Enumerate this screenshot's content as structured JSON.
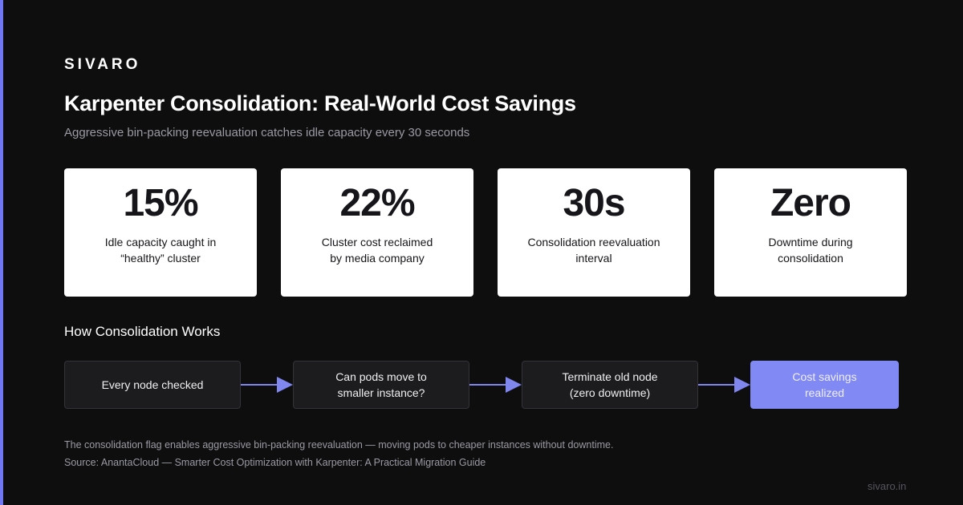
{
  "brand": "SIVARO",
  "title": "Karpenter Consolidation: Real-World Cost Savings",
  "subtitle": "Aggressive bin-packing reevaluation catches idle capacity every 30 seconds",
  "stats": [
    {
      "value": "15%",
      "label_lines": [
        "Idle capacity caught in",
        "“healthy” cluster"
      ]
    },
    {
      "value": "22%",
      "label_lines": [
        "Cluster cost reclaimed",
        "by media company"
      ]
    },
    {
      "value": "30s",
      "label_lines": [
        "Consolidation reevaluation",
        "interval"
      ]
    },
    {
      "value": "Zero",
      "label_lines": [
        "Downtime during",
        "consolidation"
      ]
    }
  ],
  "flow": {
    "heading": "How Consolidation Works",
    "steps": [
      {
        "lines": [
          "Every node checked"
        ]
      },
      {
        "lines": [
          "Can pods move to",
          "smaller instance?"
        ]
      },
      {
        "lines": [
          "Terminate old node",
          "(zero downtime)"
        ]
      },
      {
        "lines": [
          "Cost savings",
          "realized"
        ]
      }
    ]
  },
  "footnote": "The consolidation flag enables aggressive bin-packing reevaluation — moving pods to cheaper instances without downtime.",
  "source": "Source: AnantaCloud — Smarter Cost Optimization with Karpenter: A Practical Migration Guide",
  "site": "sivaro.in"
}
